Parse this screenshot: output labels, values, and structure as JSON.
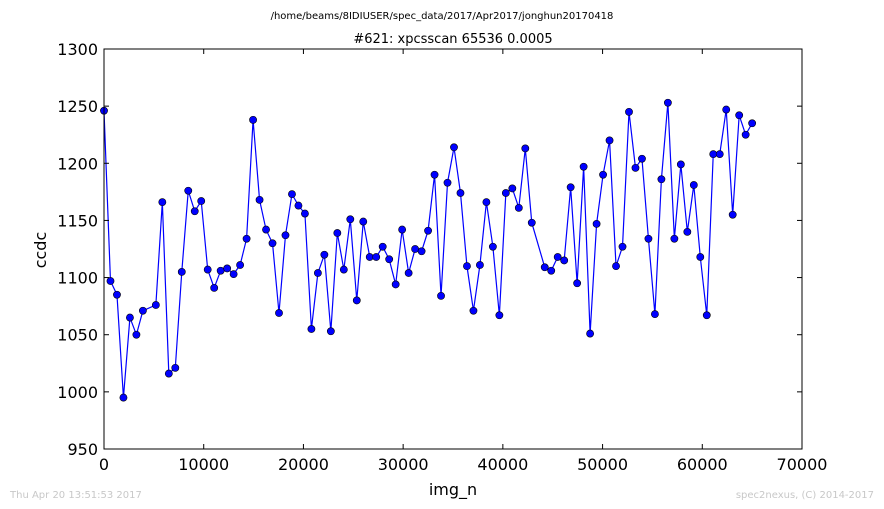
{
  "figure": {
    "suptitle": "/home/beams/8IDIUSER/spec_data/2017/Apr2017/jonghun20170418",
    "footer_left": "Thu Apr 20 13:51:53 2017",
    "footer_right": "spec2nexus, (C) 2014-2017"
  },
  "chart_data": {
    "type": "line",
    "title": "#621: xpcsscan 65536 0.0005",
    "xlabel": "img_n",
    "ylabel": "ccdc",
    "xlim": [
      0,
      70000
    ],
    "ylim": [
      950,
      1300
    ],
    "xticks": [
      0,
      10000,
      20000,
      30000,
      40000,
      50000,
      60000,
      70000
    ],
    "yticks": [
      950,
      1000,
      1050,
      1100,
      1150,
      1200,
      1250,
      1300
    ],
    "grid": false,
    "line_color": "#0000ff",
    "marker_color": "#0000ff",
    "series": [
      {
        "x": [
          0,
          650,
          1300,
          1950,
          2600,
          3250,
          3900,
          5200,
          5850,
          6500,
          7150,
          7800,
          8450,
          9100,
          9750,
          10400,
          11050,
          11700,
          12350,
          13000,
          13650,
          14300,
          14950,
          15600,
          16250,
          16900,
          17550,
          18200,
          18850,
          19500,
          20150,
          20800,
          21450,
          22100,
          22750,
          23400,
          24050,
          24700,
          25350,
          26000,
          26650,
          27300,
          27950,
          28600,
          29250,
          29900,
          30550,
          31200,
          31850,
          32500,
          33150,
          33800,
          34450,
          35100,
          35750,
          36400,
          37050,
          37700,
          38350,
          39000,
          39650,
          40300,
          40950,
          41600,
          42250,
          42900,
          44200,
          44850,
          45500,
          46150,
          46800,
          47450,
          48100,
          48750,
          49400,
          50050,
          50700,
          51350,
          52000,
          52650,
          53300,
          53950,
          54600,
          55250,
          55900,
          56550,
          57200,
          57850,
          58500,
          59150,
          59800,
          60450,
          61100,
          61750,
          62400,
          63050,
          63700,
          64350,
          65000
        ],
        "y": [
          1246,
          1097,
          1085,
          995,
          1065,
          1050,
          1071,
          1076,
          1166,
          1016,
          1021,
          1105,
          1176,
          1158,
          1167,
          1107,
          1091,
          1106,
          1108,
          1103,
          1111,
          1134,
          1238,
          1168,
          1142,
          1130,
          1069,
          1137,
          1173,
          1163,
          1156,
          1055,
          1104,
          1120,
          1053,
          1139,
          1107,
          1151,
          1080,
          1149,
          1118,
          1118,
          1127,
          1116,
          1094,
          1142,
          1104,
          1125,
          1123,
          1141,
          1190,
          1084,
          1183,
          1214,
          1174,
          1110,
          1071,
          1111,
          1166,
          1127,
          1067,
          1174,
          1178,
          1161,
          1213,
          1148,
          1109,
          1106,
          1118,
          1115,
          1179,
          1095,
          1197,
          1051,
          1147,
          1190,
          1220,
          1110,
          1127,
          1245,
          1196,
          1204,
          1134,
          1068,
          1186,
          1253,
          1134,
          1199,
          1140,
          1181,
          1118,
          1067,
          1208,
          1208,
          1247,
          1155,
          1242,
          1225,
          1235
        ]
      }
    ]
  }
}
